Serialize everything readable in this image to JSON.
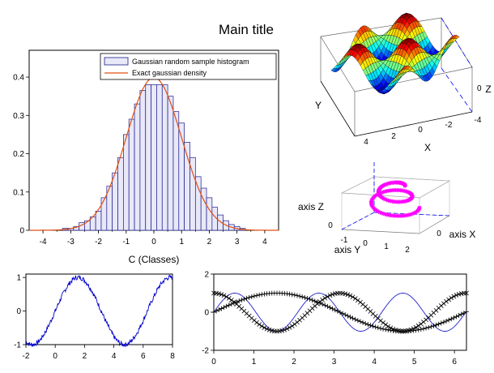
{
  "figure": {
    "title": "Main title"
  },
  "chart_data": [
    {
      "type": "bar",
      "x": [
        -4.4,
        -4.2,
        -4.0,
        -3.8,
        -3.6,
        -3.4,
        -3.2,
        -3.0,
        -2.8,
        -2.6,
        -2.4,
        -2.2,
        -2.0,
        -1.8,
        -1.6,
        -1.4,
        -1.2,
        -1.0,
        -0.8,
        -0.6,
        -0.4,
        -0.2,
        0.0,
        0.2,
        0.4,
        0.6,
        0.8,
        1.0,
        1.2,
        1.4,
        1.6,
        1.8,
        2.0,
        2.2,
        2.4,
        2.6,
        2.8,
        3.0,
        3.2,
        3.4,
        3.6,
        3.8,
        4.0,
        4.2,
        4.4
      ],
      "values": [
        0.0,
        0.0,
        0.0,
        0.0,
        0.0,
        0.0,
        0.005,
        0.005,
        0.01,
        0.02,
        0.025,
        0.035,
        0.05,
        0.085,
        0.115,
        0.15,
        0.19,
        0.25,
        0.29,
        0.33,
        0.365,
        0.38,
        0.38,
        0.38,
        0.38,
        0.35,
        0.31,
        0.28,
        0.23,
        0.19,
        0.14,
        0.11,
        0.085,
        0.06,
        0.04,
        0.025,
        0.015,
        0.01,
        0.005,
        0.0,
        0.0,
        0.0,
        0.0,
        0.0,
        0.0
      ],
      "bin_width": 0.2,
      "series": [
        {
          "name": "Gaussian random sample histogram",
          "kind": "bar"
        },
        {
          "name": "Exact gaussian density",
          "kind": "line",
          "formula": "normal(0,1) pdf"
        }
      ],
      "xticks": [
        "-4",
        "-3",
        "-2",
        "-1",
        "0",
        "1",
        "2",
        "3",
        "4"
      ],
      "yticks": [
        "0",
        "0.1",
        "0.2",
        "0.3",
        "0.4"
      ],
      "xlabel": "C (Classes)",
      "ylabel": "",
      "xlim": [
        -4.5,
        4.5
      ],
      "ylim": [
        0,
        0.47
      ],
      "legend": "top-right",
      "colors": {
        "bar_fill": "#e8e8f8",
        "bar_edge": "#1a1a8c",
        "line": "#e05010"
      }
    },
    {
      "type": "surface",
      "formula": "z = sin(x)*cos(y)",
      "xlabel": "X",
      "ylabel": "Y",
      "zlabel": "Z",
      "xticks": [
        "0",
        "2",
        "4",
        "-2",
        "-4"
      ],
      "yticks": [
        "4",
        "2",
        "0",
        "-2",
        "-4"
      ],
      "zticks": [
        "0"
      ],
      "grid_size": 25,
      "colormap": "jet"
    },
    {
      "type": "scatter3d",
      "xlabel": "axis X",
      "ylabel": "axis Y",
      "zlabel": "axis Z",
      "xticks": [
        "-1",
        "0",
        "1",
        "2"
      ],
      "yticks": [
        "0"
      ],
      "zticks": [
        "0"
      ],
      "marker": "*",
      "color": "#ff00ff",
      "shape": "helix"
    },
    {
      "type": "line",
      "formula": "sin(x) + noise",
      "xlim": [
        -2,
        8
      ],
      "ylim": [
        -1,
        1.1
      ],
      "xticks": [
        "-2",
        "0",
        "2",
        "4",
        "6",
        "8"
      ],
      "yticks": [
        "-1",
        "0",
        "1"
      ],
      "color": "#0000cc"
    },
    {
      "type": "line",
      "xlim": [
        0,
        6.3
      ],
      "ylim": [
        -2,
        2
      ],
      "xticks": [
        "0",
        "1",
        "2",
        "3",
        "4",
        "5",
        "6"
      ],
      "yticks": [
        "-2",
        "0",
        "2"
      ],
      "series": [
        {
          "formula": "sin(3x)",
          "color": "#2020cc",
          "marker": "none"
        },
        {
          "formula": "sin(x)",
          "color": "#000000",
          "marker": "+"
        },
        {
          "formula": "cos(2x)",
          "color": "#000000",
          "marker": "x"
        }
      ]
    }
  ]
}
